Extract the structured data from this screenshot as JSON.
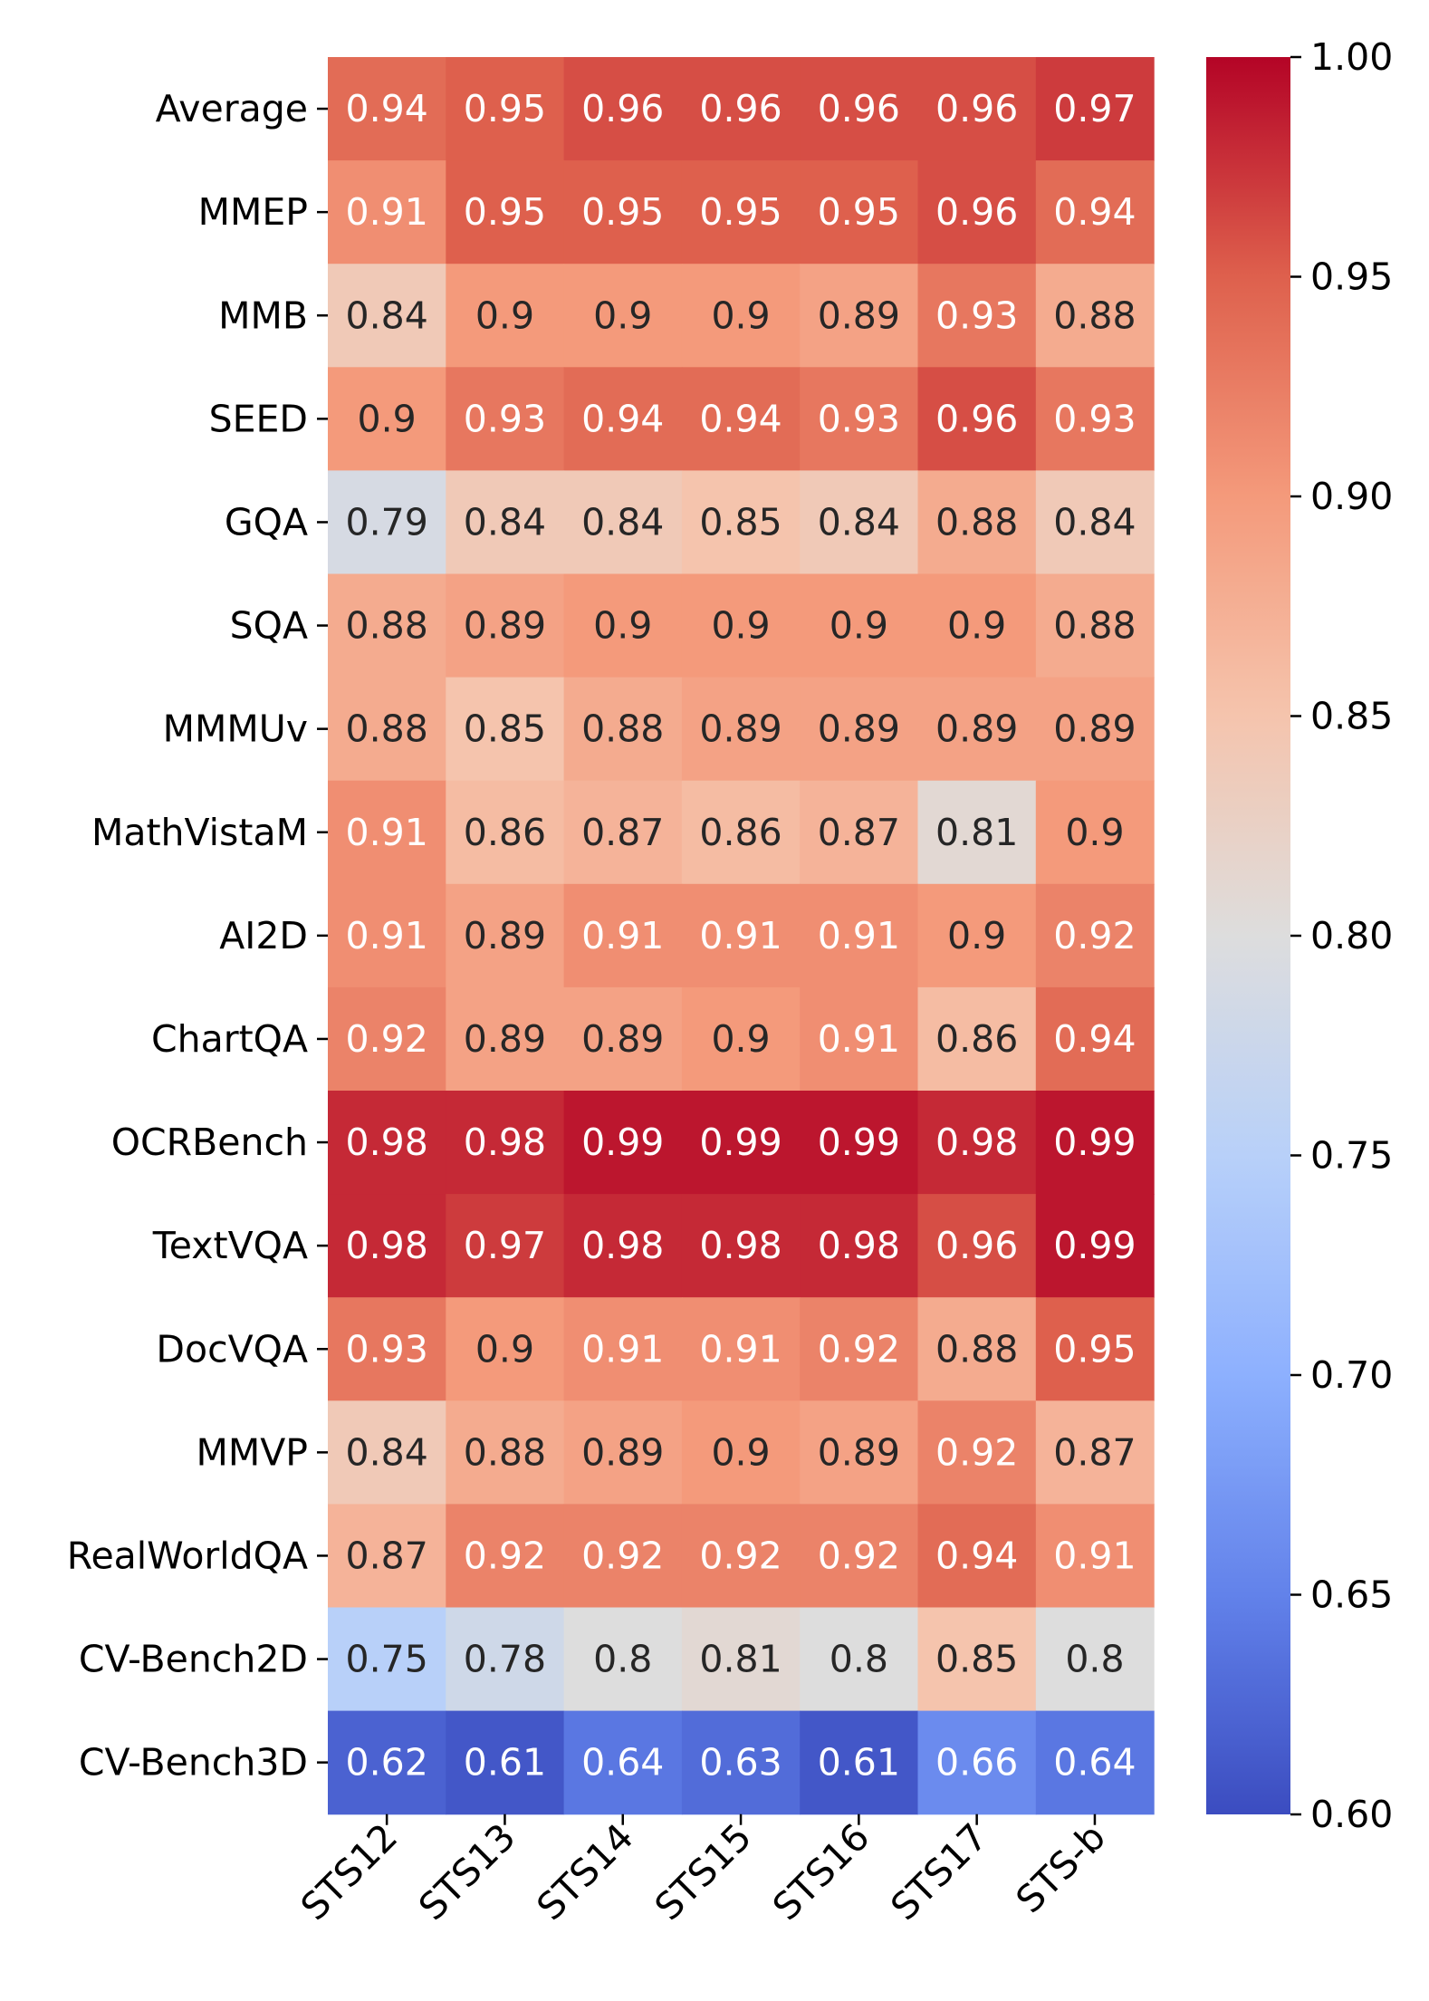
{
  "chart_data": {
    "type": "heatmap",
    "title": "",
    "xlabel": "",
    "ylabel": "",
    "x_categories": [
      "STS12",
      "STS13",
      "STS14",
      "STS15",
      "STS16",
      "STS17",
      "STS-b"
    ],
    "y_categories": [
      "Average",
      "MMEP",
      "MMB",
      "SEED",
      "GQA",
      "SQA",
      "MMMUv",
      "MathVistaM",
      "AI2D",
      "ChartQA",
      "OCRBench",
      "TextVQA",
      "DocVQA",
      "MMVP",
      "RealWorldQA",
      "CV-Bench2D",
      "CV-Bench3D"
    ],
    "values": [
      [
        0.94,
        0.95,
        0.96,
        0.96,
        0.96,
        0.96,
        0.97
      ],
      [
        0.91,
        0.95,
        0.95,
        0.95,
        0.95,
        0.96,
        0.94
      ],
      [
        0.84,
        0.9,
        0.9,
        0.9,
        0.89,
        0.93,
        0.88
      ],
      [
        0.9,
        0.93,
        0.94,
        0.94,
        0.93,
        0.96,
        0.93
      ],
      [
        0.79,
        0.84,
        0.84,
        0.85,
        0.84,
        0.88,
        0.84
      ],
      [
        0.88,
        0.89,
        0.9,
        0.9,
        0.9,
        0.9,
        0.88
      ],
      [
        0.88,
        0.85,
        0.88,
        0.89,
        0.89,
        0.89,
        0.89
      ],
      [
        0.91,
        0.86,
        0.87,
        0.86,
        0.87,
        0.81,
        0.9
      ],
      [
        0.91,
        0.89,
        0.91,
        0.91,
        0.91,
        0.9,
        0.92
      ],
      [
        0.92,
        0.89,
        0.89,
        0.9,
        0.91,
        0.86,
        0.94
      ],
      [
        0.98,
        0.98,
        0.99,
        0.99,
        0.99,
        0.98,
        0.99
      ],
      [
        0.98,
        0.97,
        0.98,
        0.98,
        0.98,
        0.96,
        0.99
      ],
      [
        0.93,
        0.9,
        0.91,
        0.91,
        0.92,
        0.88,
        0.95
      ],
      [
        0.84,
        0.88,
        0.89,
        0.9,
        0.89,
        0.92,
        0.87
      ],
      [
        0.87,
        0.92,
        0.92,
        0.92,
        0.92,
        0.94,
        0.91
      ],
      [
        0.75,
        0.78,
        0.8,
        0.81,
        0.8,
        0.85,
        0.8
      ],
      [
        0.62,
        0.61,
        0.64,
        0.63,
        0.61,
        0.66,
        0.64
      ]
    ],
    "cell_labels": [
      [
        "0.94",
        "0.95",
        "0.96",
        "0.96",
        "0.96",
        "0.96",
        "0.97"
      ],
      [
        "0.91",
        "0.95",
        "0.95",
        "0.95",
        "0.95",
        "0.96",
        "0.94"
      ],
      [
        "0.84",
        "0.9",
        "0.9",
        "0.9",
        "0.89",
        "0.93",
        "0.88"
      ],
      [
        "0.9",
        "0.93",
        "0.94",
        "0.94",
        "0.93",
        "0.96",
        "0.93"
      ],
      [
        "0.79",
        "0.84",
        "0.84",
        "0.85",
        "0.84",
        "0.88",
        "0.84"
      ],
      [
        "0.88",
        "0.89",
        "0.9",
        "0.9",
        "0.9",
        "0.9",
        "0.88"
      ],
      [
        "0.88",
        "0.85",
        "0.88",
        "0.89",
        "0.89",
        "0.89",
        "0.89"
      ],
      [
        "0.91",
        "0.86",
        "0.87",
        "0.86",
        "0.87",
        "0.81",
        "0.9"
      ],
      [
        "0.91",
        "0.89",
        "0.91",
        "0.91",
        "0.91",
        "0.9",
        "0.92"
      ],
      [
        "0.92",
        "0.89",
        "0.89",
        "0.9",
        "0.91",
        "0.86",
        "0.94"
      ],
      [
        "0.98",
        "0.98",
        "0.99",
        "0.99",
        "0.99",
        "0.98",
        "0.99"
      ],
      [
        "0.98",
        "0.97",
        "0.98",
        "0.98",
        "0.98",
        "0.96",
        "0.99"
      ],
      [
        "0.93",
        "0.9",
        "0.91",
        "0.91",
        "0.92",
        "0.88",
        "0.95"
      ],
      [
        "0.84",
        "0.88",
        "0.89",
        "0.9",
        "0.89",
        "0.92",
        "0.87"
      ],
      [
        "0.87",
        "0.92",
        "0.92",
        "0.92",
        "0.92",
        "0.94",
        "0.91"
      ],
      [
        "0.75",
        "0.78",
        "0.8",
        "0.81",
        "0.8",
        "0.85",
        "0.8"
      ],
      [
        "0.62",
        "0.61",
        "0.64",
        "0.63",
        "0.61",
        "0.66",
        "0.64"
      ]
    ],
    "colormap": "coolwarm",
    "vmin": 0.6,
    "vmax": 1.0,
    "colorbar_ticks": [
      "0.60",
      "0.65",
      "0.70",
      "0.75",
      "0.80",
      "0.85",
      "0.90",
      "0.95",
      "1.00"
    ],
    "colorbar_tick_values": [
      0.6,
      0.65,
      0.7,
      0.75,
      0.8,
      0.85,
      0.9,
      0.95,
      1.0
    ],
    "colorbar_placement": "right",
    "text_colors": {
      "light": "#ffffff",
      "dark": "#262626"
    },
    "grid": false
  }
}
